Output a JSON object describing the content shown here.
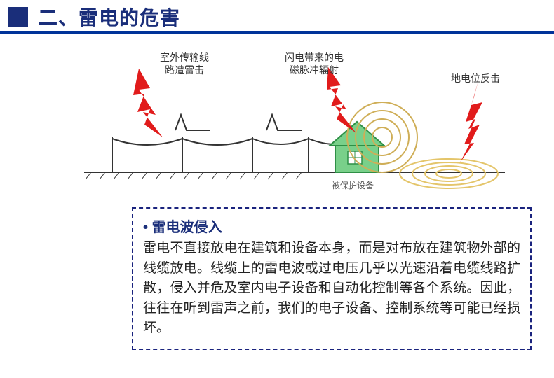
{
  "header": {
    "title": "二、雷电的危害",
    "block_color": "#1a2e7a",
    "rule_color": "#003399"
  },
  "diagram": {
    "labels": {
      "line_strike": "室外传输线\n路遭雷击",
      "emp": "闪电带来的电\n磁脉冲辐射",
      "gpr": "地电位反击",
      "protected": "被保护设备"
    },
    "colors": {
      "bolt": "#e11b1b",
      "house_fill": "#79d08a",
      "house_stroke": "#2e8f46",
      "line": "#333333",
      "wave": "#cfae57",
      "ground_wave": "#e4c56a"
    }
  },
  "box": {
    "title": "雷电波侵入",
    "body": "雷电不直接放电在建筑和设备本身，而是对布放在建筑物外部的线缆放电。线缆上的雷电波或过电压几乎以光速沿着电缆线路扩散，侵入并危及室内电子设备和自动化控制等各个系统。因此，往往在听到雷声之前，我们的电子设备、控制系统等可能已经损坏。"
  }
}
